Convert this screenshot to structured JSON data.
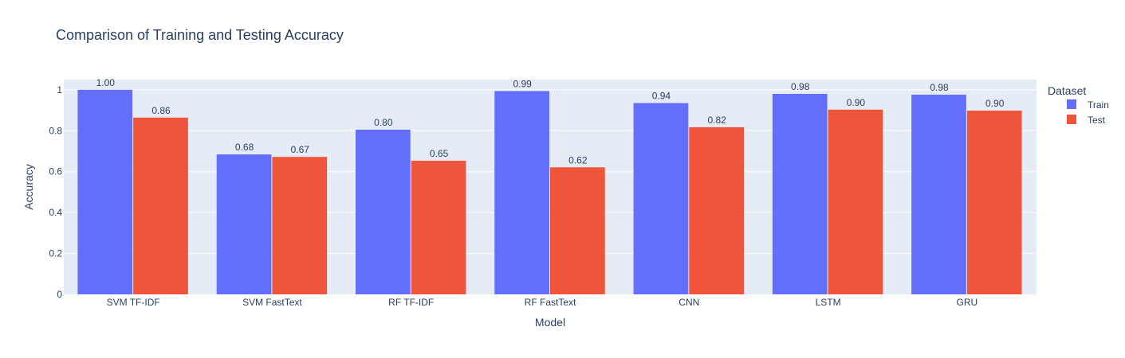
{
  "chart_data": {
    "type": "bar",
    "title": "Comparison of Training and Testing Accuracy",
    "xlabel": "Model",
    "ylabel": "Accuracy",
    "categories": [
      "SVM TF-IDF",
      "SVM FastText",
      "RF TF-IDF",
      "RF FastText",
      "CNN",
      "LSTM",
      "GRU"
    ],
    "series": [
      {
        "name": "Train",
        "color": "#636efa",
        "values": [
          1.0,
          0.684,
          0.805,
          0.994,
          0.935,
          0.98,
          0.976
        ],
        "labels": [
          "1.00",
          "0.68",
          "0.80",
          "0.99",
          "0.94",
          "0.98",
          "0.98"
        ]
      },
      {
        "name": "Test",
        "color": "#ef553b",
        "values": [
          0.864,
          0.672,
          0.653,
          0.621,
          0.817,
          0.903,
          0.898
        ],
        "labels": [
          "0.86",
          "0.67",
          "0.65",
          "0.62",
          "0.82",
          "0.90",
          "0.90"
        ]
      }
    ],
    "ylim": [
      0,
      1.05
    ],
    "yticks": [
      0,
      0.2,
      0.4,
      0.6,
      0.8,
      1
    ],
    "ytick_labels": [
      "0",
      "0.2",
      "0.4",
      "0.6",
      "0.8",
      "1"
    ],
    "legend": {
      "title": "Dataset",
      "position": "top-right"
    },
    "grid": true,
    "plot_bg": "#e5ecf6"
  }
}
